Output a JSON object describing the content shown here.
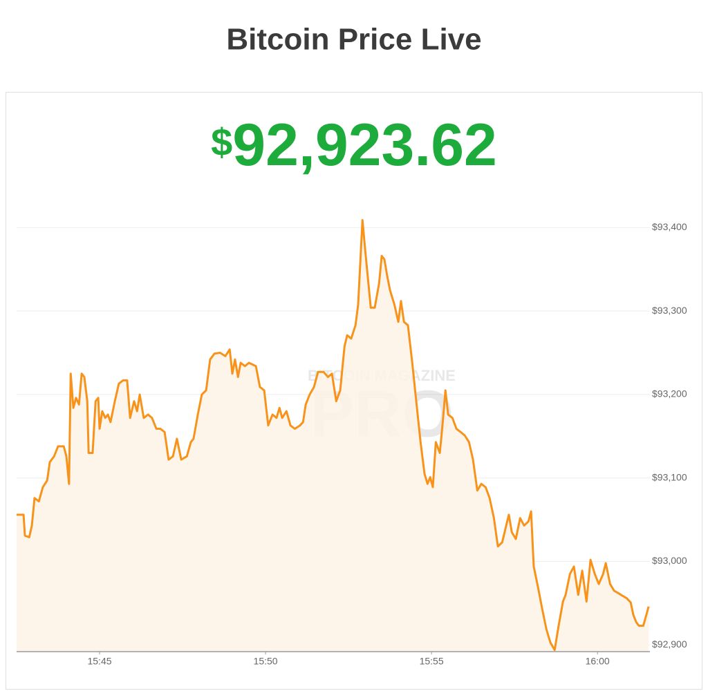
{
  "header": {
    "title": "Bitcoin Price Live"
  },
  "price": {
    "currency": "$",
    "amount": "92,923.62"
  },
  "watermark": {
    "top": "BITCOIN MAGAZINE",
    "main": "PRO"
  },
  "chart_data": {
    "type": "area",
    "color": "#f7931a",
    "fill": "#fdf3e6",
    "grid": true,
    "xlim": [
      942.5,
      961.58
    ],
    "ylim": [
      92892,
      93416
    ],
    "xticks": [
      {
        "value": 945,
        "label": "15:45"
      },
      {
        "value": 950,
        "label": "15:50"
      },
      {
        "value": 955,
        "label": "15:55"
      },
      {
        "value": 960,
        "label": "16:00"
      }
    ],
    "yticks": [
      {
        "value": 92900,
        "label": "$92,900"
      },
      {
        "value": 93000,
        "label": "$93,000"
      },
      {
        "value": 93100,
        "label": "$93,100"
      },
      {
        "value": 93200,
        "label": "$93,200"
      },
      {
        "value": 93300,
        "label": "$93,300"
      },
      {
        "value": 93400,
        "label": "$93,400"
      }
    ],
    "x": [
      942.5,
      942.71,
      942.75,
      942.88,
      942.96,
      943.04,
      943.17,
      943.29,
      943.42,
      943.5,
      943.63,
      943.75,
      943.92,
      944.0,
      944.08,
      944.13,
      944.21,
      944.29,
      944.38,
      944.46,
      944.54,
      944.63,
      944.67,
      944.79,
      944.88,
      944.96,
      945.0,
      945.08,
      945.17,
      945.25,
      945.33,
      945.46,
      945.58,
      945.71,
      945.83,
      945.92,
      946.04,
      946.13,
      946.21,
      946.33,
      946.46,
      946.58,
      946.71,
      946.83,
      946.96,
      947.08,
      947.21,
      947.33,
      947.46,
      947.63,
      947.75,
      947.83,
      947.96,
      948.08,
      948.21,
      948.33,
      948.46,
      948.63,
      948.79,
      948.92,
      949.0,
      949.08,
      949.17,
      949.25,
      949.38,
      949.5,
      949.71,
      949.83,
      949.96,
      950.08,
      950.21,
      950.33,
      950.42,
      950.5,
      950.63,
      950.75,
      950.88,
      951.04,
      951.13,
      951.21,
      951.33,
      951.46,
      951.58,
      951.75,
      951.88,
      952.0,
      952.13,
      952.25,
      952.38,
      952.46,
      952.58,
      952.71,
      952.79,
      952.92,
      953.0,
      953.08,
      953.17,
      953.29,
      953.42,
      953.5,
      953.58,
      953.67,
      953.75,
      953.88,
      954.0,
      954.08,
      954.17,
      954.29,
      954.42,
      954.54,
      954.67,
      954.79,
      954.88,
      954.96,
      955.04,
      955.13,
      955.25,
      955.33,
      955.42,
      955.5,
      955.63,
      955.75,
      955.88,
      956.0,
      956.13,
      956.25,
      956.38,
      956.5,
      956.63,
      956.75,
      956.88,
      957.0,
      957.13,
      957.25,
      957.33,
      957.42,
      957.54,
      957.67,
      957.79,
      957.92,
      958.0,
      958.08,
      958.21,
      958.33,
      958.46,
      958.58,
      958.71,
      958.83,
      958.96,
      959.04,
      959.17,
      959.29,
      959.42,
      959.54,
      959.67,
      959.79,
      959.92,
      960.04,
      960.17,
      960.25,
      960.38,
      960.5,
      960.63,
      960.75,
      960.88,
      961.0,
      961.08,
      961.17,
      961.25,
      961.38,
      961.5,
      961.54
    ],
    "values": [
      93056,
      93056,
      93031,
      93029,
      93043,
      93076,
      93072,
      93089,
      93097,
      93119,
      93126,
      93138,
      93138,
      93126,
      93093,
      93225,
      93184,
      93196,
      93188,
      93225,
      93221,
      93192,
      93130,
      93130,
      93192,
      93196,
      93159,
      93180,
      93172,
      93176,
      93167,
      93192,
      93213,
      93217,
      93217,
      93172,
      93192,
      93180,
      93200,
      93172,
      93176,
      93172,
      93159,
      93159,
      93155,
      93122,
      93126,
      93147,
      93122,
      93126,
      93143,
      93147,
      93176,
      93200,
      93205,
      93242,
      93249,
      93250,
      93246,
      93254,
      93225,
      93242,
      93221,
      93238,
      93234,
      93238,
      93234,
      93209,
      93205,
      93163,
      93176,
      93172,
      93184,
      93172,
      93180,
      93163,
      93159,
      93163,
      93167,
      93188,
      93200,
      93209,
      93227,
      93227,
      93221,
      93225,
      93192,
      93205,
      93258,
      93271,
      93267,
      93283,
      93308,
      93409,
      93374,
      93341,
      93304,
      93304,
      93333,
      93366,
      93362,
      93341,
      93325,
      93308,
      93287,
      93312,
      93287,
      93283,
      93238,
      93192,
      93143,
      93105,
      93093,
      93101,
      93089,
      93143,
      93130,
      93163,
      93205,
      93176,
      93172,
      93159,
      93155,
      93151,
      93143,
      93122,
      93085,
      93093,
      93089,
      93076,
      93052,
      93018,
      93023,
      93043,
      93056,
      93035,
      93027,
      93052,
      93043,
      93048,
      93060,
      92994,
      92969,
      92944,
      92919,
      92903,
      92894,
      92923,
      92952,
      92960,
      92985,
      92994,
      92960,
      92989,
      92952,
      93002,
      92985,
      92973,
      92985,
      92998,
      92973,
      92965,
      92962,
      92959,
      92956,
      92951,
      92936,
      92927,
      92923,
      92923,
      92940,
      92946
    ]
  }
}
